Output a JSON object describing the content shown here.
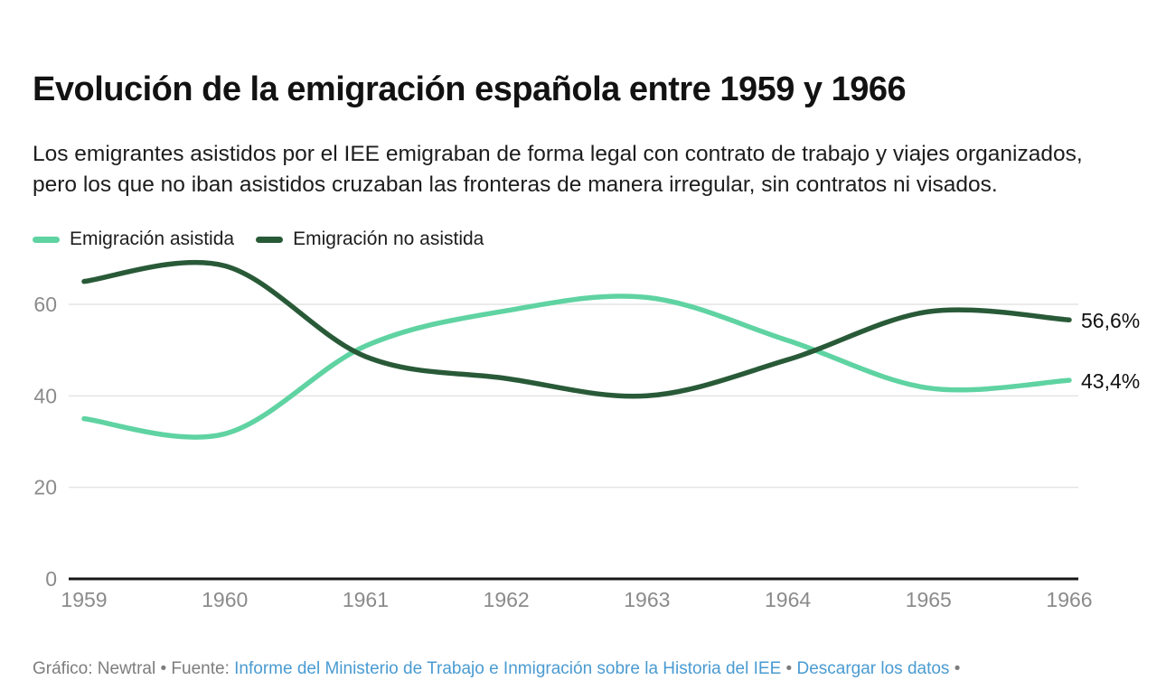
{
  "header": {
    "title": "Evolución de la emigración española entre 1959 y 1966",
    "subtitle": "Los emigrantes asistidos por el IEE emigraban de forma legal con contrato de trabajo y viajes organizados, pero los que no iban asistidos cruzaban las fronteras de manera irregular, sin contratos ni visados."
  },
  "legend": {
    "items": [
      {
        "label": "Emigración asistida",
        "color": "#5FD3A2"
      },
      {
        "label": "Emigración no asistida",
        "color": "#295A38"
      }
    ]
  },
  "chart_data": {
    "type": "line",
    "x": [
      1959,
      1960,
      1961,
      1962,
      1963,
      1964,
      1965,
      1966
    ],
    "series": [
      {
        "name": "Emigración asistida",
        "color": "#5FD3A2",
        "values": [
          35.0,
          31.7,
          50.9,
          58.6,
          61.5,
          52.1,
          41.7,
          43.4
        ],
        "end_label": "43,4%"
      },
      {
        "name": "Emigración no asistida",
        "color": "#295A38",
        "values": [
          65.0,
          68.4,
          48.6,
          43.8,
          40.0,
          47.9,
          58.4,
          56.6
        ],
        "end_label": "56,6%"
      }
    ],
    "title": "Evolución de la emigración española entre 1959 y 1966",
    "xlabel": "",
    "ylabel": "",
    "unit": "%",
    "ylim": [
      0,
      70
    ],
    "yticks": [
      0,
      20,
      40,
      60
    ],
    "grid": true,
    "legend_position": "top-left"
  },
  "footer": {
    "prefix": "Gráfico: Newtral • Fuente: ",
    "source_link": "Informe del Ministerio de Trabajo e Inmigración sobre la Historia del IEE",
    "separator1": " • ",
    "download_link": "Descargar los datos",
    "separator2": " •"
  },
  "colors": {
    "link": "#4A9BD2",
    "axis_text": "#8B8B8B",
    "gridline": "#E4E4E4",
    "axis_line": "#161616",
    "end_label_text": "#111111"
  }
}
